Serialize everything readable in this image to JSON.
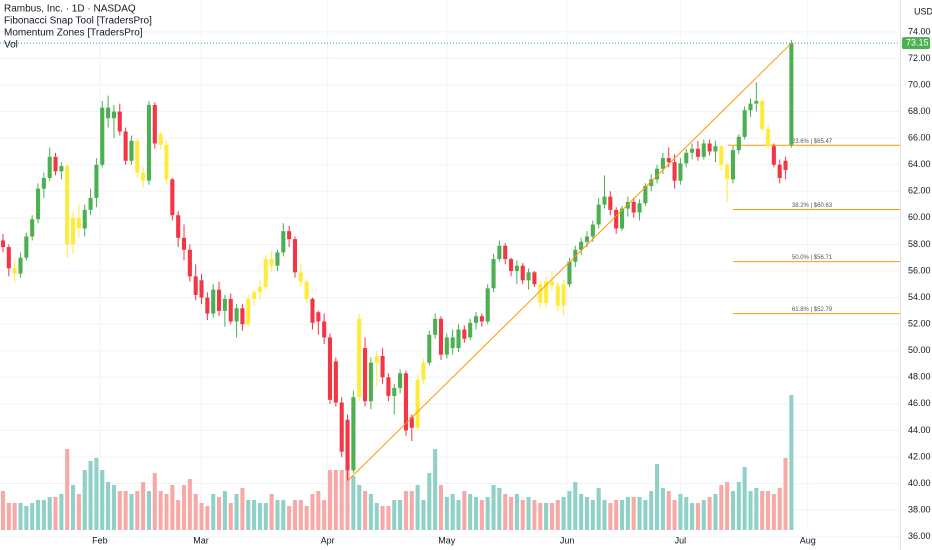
{
  "chart_data": {
    "type": "candlestick",
    "title": "Rambus, Inc. · 1D · NASDAQ",
    "indicators": [
      "Fibonacci Snap Tool [TradersPro]",
      "Momentum Zones [TradersPro]",
      "Vol"
    ],
    "currency": "USD",
    "ylim": [
      35,
      76.4
    ],
    "yticks": [
      {
        "value": 74,
        "label": "74.00"
      },
      {
        "value": 72,
        "label": "72.00"
      },
      {
        "value": 70,
        "label": "70.00"
      },
      {
        "value": 68,
        "label": "68.00"
      },
      {
        "value": 66,
        "label": "66.00"
      },
      {
        "value": 64,
        "label": "64.00"
      },
      {
        "value": 62,
        "label": "62.00"
      },
      {
        "value": 60,
        "label": "60.00"
      },
      {
        "value": 58,
        "label": "58.00"
      },
      {
        "value": 56,
        "label": "56.00"
      },
      {
        "value": 54,
        "label": "54.00"
      },
      {
        "value": 52,
        "label": "52.00"
      },
      {
        "value": 50,
        "label": "50.00"
      },
      {
        "value": 48,
        "label": "48.00"
      },
      {
        "value": 46,
        "label": "46.00"
      },
      {
        "value": 44,
        "label": "44.00"
      },
      {
        "value": 42,
        "label": "42.00"
      },
      {
        "value": 40,
        "label": "40.00"
      },
      {
        "value": 38,
        "label": "38.00"
      },
      {
        "value": 36,
        "label": "36.00"
      }
    ],
    "xlim": [
      -0.51,
      153.6
    ],
    "xticks": [
      {
        "value": 16.6,
        "label": "Feb"
      },
      {
        "value": 33.9,
        "label": "Mar"
      },
      {
        "value": 55.6,
        "label": "Apr"
      },
      {
        "value": 76,
        "label": "May"
      },
      {
        "value": 96.6,
        "label": "Jun"
      },
      {
        "value": 116,
        "label": "Jul"
      },
      {
        "value": 137.8,
        "label": "Aug"
      }
    ],
    "grid": true,
    "zone_colors": {
      "g": "#4caf50",
      "r": "#f23645",
      "y": "#ffeb3b"
    },
    "volume_colors": {
      "up": "#8fd1c6",
      "down": "#f7a9a7"
    },
    "ohlc": [
      [
        58.3,
        58.8,
        57.4,
        57.8
      ],
      [
        57.8,
        58.0,
        55.6,
        56.2
      ],
      [
        56.2,
        56.8,
        55.1,
        55.8
      ],
      [
        55.8,
        57.4,
        55.5,
        57.0
      ],
      [
        57.0,
        58.9,
        56.8,
        58.6
      ],
      [
        58.6,
        60.2,
        58.3,
        59.9
      ],
      [
        59.9,
        62.6,
        59.6,
        62.2
      ],
      [
        62.2,
        63.4,
        61.5,
        63.0
      ],
      [
        63.0,
        65.3,
        62.8,
        64.6
      ],
      [
        64.6,
        64.9,
        63.2,
        63.5
      ],
      [
        63.5,
        64.2,
        62.9,
        63.9
      ],
      [
        63.9,
        64.0,
        57.0,
        58.0
      ],
      [
        58.0,
        60.5,
        57.3,
        60.0
      ],
      [
        60.0,
        61.0,
        58.5,
        59.2
      ],
      [
        59.2,
        61.0,
        58.6,
        60.6
      ],
      [
        60.6,
        62.2,
        60.2,
        61.5
      ],
      [
        61.5,
        64.5,
        60.8,
        64.0
      ],
      [
        64.0,
        68.8,
        63.8,
        68.3
      ],
      [
        67.5,
        69.2,
        66.8,
        68.3
      ],
      [
        67.5,
        68.5,
        66.0,
        68.0
      ],
      [
        68.0,
        68.6,
        66.2,
        66.5
      ],
      [
        66.5,
        66.8,
        64.0,
        64.3
      ],
      [
        64.3,
        66.2,
        64.0,
        65.8
      ],
      [
        65.8,
        66.0,
        63.0,
        63.4
      ],
      [
        63.4,
        63.8,
        62.3,
        62.8
      ],
      [
        62.8,
        68.8,
        62.5,
        68.5
      ],
      [
        68.5,
        68.7,
        65.2,
        65.6
      ],
      [
        66.3,
        66.5,
        65.2,
        65.5
      ],
      [
        65.5,
        65.8,
        62.5,
        62.9
      ],
      [
        62.9,
        63.0,
        59.8,
        60.2
      ],
      [
        60.2,
        60.5,
        57.8,
        58.5
      ],
      [
        58.5,
        59.5,
        56.8,
        57.6
      ],
      [
        57.6,
        58.0,
        55.2,
        55.6
      ],
      [
        55.6,
        56.5,
        53.8,
        54.2
      ],
      [
        55.3,
        55.8,
        53.5,
        54.0
      ],
      [
        54.0,
        54.4,
        52.3,
        52.8
      ],
      [
        52.8,
        55.0,
        52.5,
        54.6
      ],
      [
        54.6,
        55.2,
        52.6,
        53.0
      ],
      [
        53.0,
        54.2,
        51.8,
        53.9
      ],
      [
        53.9,
        54.3,
        52.0,
        52.2
      ],
      [
        52.2,
        53.5,
        51.0,
        53.2
      ],
      [
        53.2,
        53.5,
        51.5,
        52.0
      ],
      [
        52.0,
        54.2,
        51.8,
        53.9
      ],
      [
        53.9,
        54.6,
        53.4,
        54.4
      ],
      [
        54.4,
        55.3,
        53.8,
        54.8
      ],
      [
        54.8,
        57.2,
        54.6,
        56.9
      ],
      [
        56.9,
        57.5,
        55.9,
        56.4
      ],
      [
        56.4,
        57.6,
        56.0,
        57.4
      ],
      [
        57.4,
        59.6,
        57.1,
        59.0
      ],
      [
        59.0,
        59.4,
        57.8,
        58.4
      ],
      [
        58.4,
        58.6,
        55.5,
        55.9
      ],
      [
        55.9,
        56.6,
        54.8,
        55.2
      ],
      [
        55.2,
        55.4,
        53.6,
        53.9
      ],
      [
        53.9,
        54.0,
        51.6,
        52.1
      ],
      [
        52.9,
        53.0,
        51.2,
        52.2
      ],
      [
        52.2,
        52.8,
        50.5,
        51.0
      ],
      [
        51.0,
        51.3,
        46.0,
        46.3
      ],
      [
        49.2,
        49.5,
        45.8,
        46.1
      ],
      [
        46.1,
        46.5,
        42.0,
        42.4
      ],
      [
        44.8,
        45.2,
        40.2,
        41.0
      ],
      [
        41.0,
        47.0,
        40.8,
        46.5
      ],
      [
        46.5,
        52.8,
        46.2,
        52.4
      ],
      [
        50.2,
        51.0,
        45.8,
        46.2
      ],
      [
        46.2,
        49.5,
        45.6,
        49.1
      ],
      [
        49.1,
        50.0,
        47.3,
        49.6
      ],
      [
        49.6,
        50.2,
        47.5,
        48.0
      ],
      [
        48.0,
        48.3,
        46.2,
        46.6
      ],
      [
        46.6,
        47.5,
        45.2,
        47.2
      ],
      [
        47.2,
        48.6,
        46.8,
        48.3
      ],
      [
        48.3,
        48.5,
        43.6,
        44.0
      ],
      [
        45.0,
        45.2,
        43.2,
        44.2
      ],
      [
        44.2,
        48.2,
        44.0,
        47.8
      ],
      [
        47.8,
        49.4,
        47.5,
        49.1
      ],
      [
        49.1,
        51.5,
        48.9,
        51.2
      ],
      [
        51.2,
        52.8,
        50.9,
        52.4
      ],
      [
        52.4,
        52.6,
        49.3,
        49.7
      ],
      [
        49.7,
        51.3,
        49.4,
        51.0
      ],
      [
        50.2,
        51.6,
        49.7,
        51.0
      ],
      [
        50.2,
        52.0,
        49.9,
        51.6
      ],
      [
        51.6,
        51.9,
        50.6,
        50.9
      ],
      [
        51.0,
        52.4,
        50.8,
        52.1
      ],
      [
        52.1,
        52.9,
        51.6,
        52.6
      ],
      [
        52.6,
        52.8,
        51.8,
        52.2
      ],
      [
        52.2,
        55.0,
        52.0,
        54.7
      ],
      [
        54.7,
        57.3,
        54.4,
        56.9
      ],
      [
        56.9,
        58.3,
        56.7,
        57.9
      ],
      [
        57.9,
        58.1,
        56.5,
        56.9
      ],
      [
        56.9,
        57.0,
        55.6,
        56.0
      ],
      [
        56.0,
        56.8,
        55.0,
        56.4
      ],
      [
        56.4,
        56.6,
        55.0,
        55.3
      ],
      [
        55.3,
        56.2,
        54.6,
        55.9
      ],
      [
        55.9,
        56.0,
        54.8,
        55.0
      ],
      [
        55.0,
        55.3,
        53.2,
        53.6
      ],
      [
        53.6,
        55.6,
        53.3,
        55.2
      ],
      [
        55.2,
        56.0,
        54.5,
        54.9
      ],
      [
        54.9,
        55.2,
        53.0,
        53.4
      ],
      [
        53.4,
        55.4,
        52.6,
        55.0
      ],
      [
        55.0,
        57.0,
        54.8,
        56.7
      ],
      [
        56.7,
        57.9,
        56.3,
        57.6
      ],
      [
        57.6,
        58.5,
        57.2,
        58.2
      ],
      [
        58.2,
        59.0,
        57.8,
        58.6
      ],
      [
        58.6,
        59.8,
        58.2,
        59.5
      ],
      [
        59.5,
        61.5,
        59.2,
        61.0
      ],
      [
        61.0,
        63.2,
        60.7,
        61.6
      ],
      [
        61.6,
        62.0,
        60.2,
        60.6
      ],
      [
        60.6,
        60.8,
        58.8,
        59.2
      ],
      [
        59.2,
        60.9,
        59.0,
        60.7
      ],
      [
        60.7,
        61.6,
        60.1,
        61.2
      ],
      [
        61.2,
        61.5,
        60.0,
        60.4
      ],
      [
        60.4,
        61.4,
        59.8,
        61.1
      ],
      [
        61.1,
        62.6,
        60.9,
        62.4
      ],
      [
        62.4,
        63.3,
        62.0,
        62.9
      ],
      [
        62.9,
        64.0,
        62.6,
        63.7
      ],
      [
        63.7,
        64.9,
        63.3,
        64.5
      ],
      [
        64.5,
        65.3,
        63.8,
        64.2
      ],
      [
        64.2,
        64.8,
        62.2,
        62.8
      ],
      [
        62.8,
        64.5,
        62.5,
        64.1
      ],
      [
        64.1,
        65.2,
        63.8,
        64.9
      ],
      [
        64.9,
        65.6,
        64.4,
        65.2
      ],
      [
        65.2,
        65.8,
        64.3,
        64.6
      ],
      [
        64.6,
        65.9,
        64.4,
        65.6
      ],
      [
        65.6,
        65.9,
        64.7,
        65.0
      ],
      [
        65.0,
        65.8,
        64.2,
        65.4
      ],
      [
        65.4,
        65.5,
        63.6,
        64.0
      ],
      [
        64.0,
        64.1,
        61.2,
        62.9
      ],
      [
        62.9,
        65.4,
        62.6,
        65.1
      ],
      [
        65.1,
        66.3,
        64.8,
        66.1
      ],
      [
        66.1,
        68.4,
        65.9,
        68.1
      ],
      [
        68.1,
        69.0,
        67.6,
        68.6
      ],
      [
        68.6,
        70.2,
        68.0,
        68.8
      ],
      [
        68.8,
        69.0,
        66.5,
        66.7
      ],
      [
        66.7,
        67.0,
        65.2,
        65.4
      ],
      [
        65.4,
        65.6,
        63.8,
        64.0
      ],
      [
        64.0,
        64.4,
        62.6,
        63.0
      ],
      [
        64.3,
        64.6,
        62.9,
        63.6
      ],
      [
        65.5,
        73.4,
        65.3,
        73.15
      ]
    ],
    "zones": [
      "r",
      "r",
      "y",
      "g",
      "g",
      "g",
      "g",
      "g",
      "g",
      "r",
      "g",
      "y",
      "y",
      "y",
      "g",
      "g",
      "g",
      "g",
      "g",
      "g",
      "r",
      "r",
      "g",
      "y",
      "y",
      "g",
      "r",
      "y",
      "y",
      "r",
      "r",
      "r",
      "r",
      "r",
      "r",
      "r",
      "g",
      "r",
      "g",
      "r",
      "g",
      "r",
      "y",
      "y",
      "y",
      "y",
      "y",
      "g",
      "g",
      "r",
      "r",
      "y",
      "y",
      "r",
      "r",
      "r",
      "r",
      "r",
      "r",
      "r",
      "g",
      "y",
      "r",
      "g",
      "y",
      "r",
      "r",
      "g",
      "g",
      "r",
      "r",
      "y",
      "y",
      "g",
      "g",
      "r",
      "g",
      "g",
      "g",
      "r",
      "g",
      "g",
      "r",
      "g",
      "g",
      "g",
      "r",
      "r",
      "g",
      "r",
      "g",
      "r",
      "y",
      "y",
      "y",
      "y",
      "y",
      "g",
      "g",
      "g",
      "g",
      "g",
      "g",
      "g",
      "r",
      "r",
      "g",
      "g",
      "r",
      "g",
      "g",
      "g",
      "g",
      "g",
      "r",
      "r",
      "g",
      "g",
      "g",
      "r",
      "g",
      "r",
      "g",
      "y",
      "y",
      "g",
      "g",
      "g",
      "g",
      "g",
      "y",
      "y",
      "r",
      "r",
      "r",
      "g"
    ],
    "volume_lim": [
      0,
      8
    ],
    "volume": [
      1.3,
      0.9,
      0.9,
      0.9,
      0.8,
      0.9,
      1.0,
      1.0,
      1.1,
      1.1,
      1.2,
      2.7,
      1.5,
      1.2,
      2.0,
      2.3,
      2.4,
      2.0,
      1.6,
      1.5,
      1.3,
      1.3,
      1.2,
      1.3,
      1.6,
      1.3,
      1.9,
      1.3,
      1.2,
      1.5,
      1.0,
      1.5,
      1.7,
      1.2,
      0.9,
      0.8,
      1.2,
      1.1,
      1.3,
      0.9,
      1.2,
      1.4,
      1.0,
      1.0,
      0.9,
      0.9,
      1.2,
      1.0,
      1.0,
      0.8,
      1.0,
      1.0,
      0.8,
      1.2,
      1.3,
      1.0,
      2.0,
      2.0,
      2.0,
      2.2,
      1.8,
      1.5,
      1.3,
      1.2,
      0.9,
      0.8,
      0.8,
      1.0,
      1.0,
      1.3,
      1.3,
      1.5,
      1.0,
      1.9,
      2.7,
      1.5,
      1.1,
      1.2,
      1.0,
      1.3,
      1.2,
      1.1,
      1.0,
      1.1,
      1.5,
      1.4,
      1.2,
      1.1,
      1.2,
      1.0,
      1.1,
      1.0,
      0.9,
      0.9,
      0.9,
      1.0,
      1.1,
      1.3,
      1.6,
      1.2,
      1.1,
      1.0,
      1.4,
      1.0,
      0.9,
      1.0,
      1.0,
      1.1,
      1.1,
      1.1,
      1.0,
      1.3,
      2.2,
      1.4,
      1.3,
      1.0,
      1.2,
      1.1,
      0.9,
      0.9,
      1.0,
      1.1,
      1.2,
      1.5,
      1.6,
      1.3,
      1.6,
      2.1,
      1.3,
      1.4,
      1.3,
      1.3,
      1.2,
      1.4,
      2.4,
      4.5
    ],
    "trendline": {
      "x": [
        59,
        135
      ],
      "y": [
        40.2,
        73.15
      ],
      "color": "#ff9800"
    },
    "fib_levels": [
      {
        "value": 65.47,
        "label": "23.6% | $65.47"
      },
      {
        "value": 60.63,
        "label": "38.2% | $60.63"
      },
      {
        "value": 56.71,
        "label": "50.0% | $56.71"
      },
      {
        "value": 52.79,
        "label": "61.8% | $52.79"
      }
    ],
    "last_price": {
      "value": 73.15,
      "label": "73.15"
    }
  }
}
